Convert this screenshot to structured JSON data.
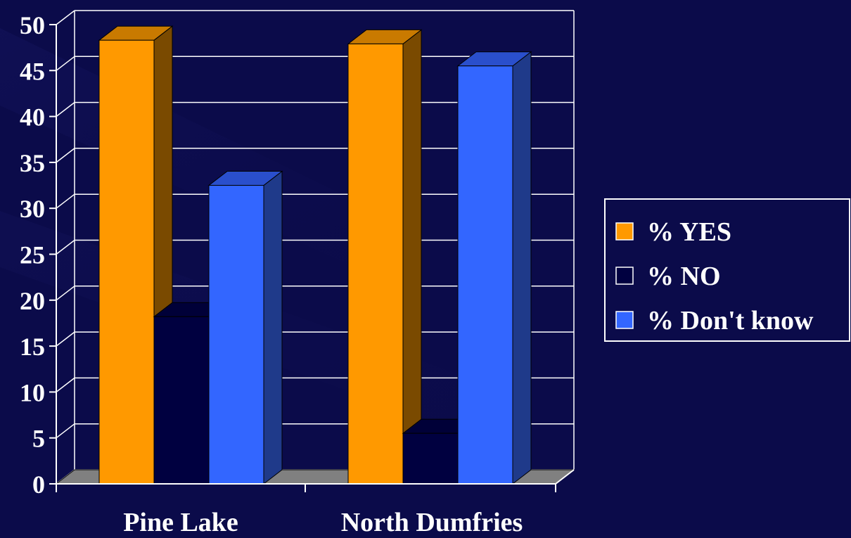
{
  "chart_data": {
    "type": "bar",
    "categories": [
      "Pine Lake",
      "North Dumfries"
    ],
    "series": [
      {
        "name": "% YES",
        "values": [
          48.3,
          47.9
        ],
        "color": "#ff9900",
        "side_color": "#7a4a00",
        "top_color": "#c97a00"
      },
      {
        "name": "% NO",
        "values": [
          18.2,
          5.5
        ],
        "color": "#000040",
        "side_color": "#000030",
        "top_color": "#000038"
      },
      {
        "name": "% Don't know",
        "values": [
          32.5,
          45.5
        ],
        "color": "#3366ff",
        "side_color": "#1f3a8a",
        "top_color": "#2a4fcc"
      }
    ],
    "yticks": [
      0,
      5,
      10,
      15,
      20,
      25,
      30,
      35,
      40,
      45,
      50
    ],
    "ylim": [
      0,
      50
    ],
    "title": "",
    "xlabel": "",
    "ylabel": "",
    "grid": true,
    "legend": "right",
    "colors": {
      "background": "#0b0b4a",
      "gridline": "#ffffff",
      "floor": "#808080"
    }
  }
}
